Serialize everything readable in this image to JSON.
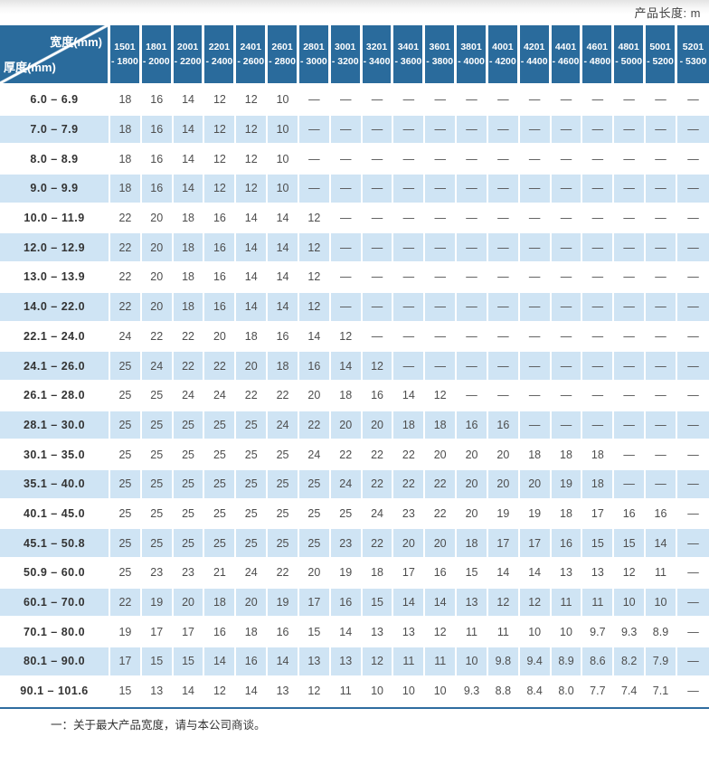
{
  "page": {
    "product_length_label": "产品长度: m",
    "footnote": "一：关于最大产品宽度，请与本公司商谈。"
  },
  "colors": {
    "header_blue": "#2a6b9c",
    "row_alt": "#cfe4f4",
    "rule_blue": "#2f6da0",
    "value_text": "#4d4d4d",
    "label_text": "#333333"
  },
  "table": {
    "corner": {
      "width_label": "宽度(mm)",
      "thickness_label": "厚度(mm)"
    },
    "width_ranges": [
      [
        "1501",
        "- 1800"
      ],
      [
        "1801",
        "- 2000"
      ],
      [
        "2001",
        "- 2200"
      ],
      [
        "2201",
        "- 2400"
      ],
      [
        "2401",
        "- 2600"
      ],
      [
        "2601",
        "- 2800"
      ],
      [
        "2801",
        "- 3000"
      ],
      [
        "3001",
        "- 3200"
      ],
      [
        "3201",
        "- 3400"
      ],
      [
        "3401",
        "- 3600"
      ],
      [
        "3601",
        "- 3800"
      ],
      [
        "3801",
        "- 4000"
      ],
      [
        "4001",
        "- 4200"
      ],
      [
        "4201",
        "- 4400"
      ],
      [
        "4401",
        "- 4600"
      ],
      [
        "4601",
        "- 4800"
      ],
      [
        "4801",
        "- 5000"
      ],
      [
        "5001",
        "- 5200"
      ],
      [
        "5201",
        "- 5300"
      ]
    ],
    "rows": [
      {
        "thickness": "6.0 –  6.9",
        "values": [
          "18",
          "16",
          "14",
          "12",
          "12",
          "10",
          "—",
          "—",
          "—",
          "—",
          "—",
          "—",
          "—",
          "—",
          "—",
          "—",
          "—",
          "—",
          "—"
        ]
      },
      {
        "thickness": "7.0 –  7.9",
        "values": [
          "18",
          "16",
          "14",
          "12",
          "12",
          "10",
          "—",
          "—",
          "—",
          "—",
          "—",
          "—",
          "—",
          "—",
          "—",
          "—",
          "—",
          "—",
          "—"
        ]
      },
      {
        "thickness": "8.0 –  8.9",
        "values": [
          "18",
          "16",
          "14",
          "12",
          "12",
          "10",
          "—",
          "—",
          "—",
          "—",
          "—",
          "—",
          "—",
          "—",
          "—",
          "—",
          "—",
          "—",
          "—"
        ]
      },
      {
        "thickness": "9.0 –  9.9",
        "values": [
          "18",
          "16",
          "14",
          "12",
          "12",
          "10",
          "—",
          "—",
          "—",
          "—",
          "—",
          "—",
          "—",
          "—",
          "—",
          "—",
          "—",
          "—",
          "—"
        ]
      },
      {
        "thickness": "10.0 – 11.9",
        "values": [
          "22",
          "20",
          "18",
          "16",
          "14",
          "14",
          "12",
          "—",
          "—",
          "—",
          "—",
          "—",
          "—",
          "—",
          "—",
          "—",
          "—",
          "—",
          "—"
        ]
      },
      {
        "thickness": "12.0 – 12.9",
        "values": [
          "22",
          "20",
          "18",
          "16",
          "14",
          "14",
          "12",
          "—",
          "—",
          "—",
          "—",
          "—",
          "—",
          "—",
          "—",
          "—",
          "—",
          "—",
          "—"
        ]
      },
      {
        "thickness": "13.0 – 13.9",
        "values": [
          "22",
          "20",
          "18",
          "16",
          "14",
          "14",
          "12",
          "—",
          "—",
          "—",
          "—",
          "—",
          "—",
          "—",
          "—",
          "—",
          "—",
          "—",
          "—"
        ]
      },
      {
        "thickness": "14.0 – 22.0",
        "values": [
          "22",
          "20",
          "18",
          "16",
          "14",
          "14",
          "12",
          "—",
          "—",
          "—",
          "—",
          "—",
          "—",
          "—",
          "—",
          "—",
          "—",
          "—",
          "—"
        ]
      },
      {
        "thickness": "22.1 – 24.0",
        "values": [
          "24",
          "22",
          "22",
          "20",
          "18",
          "16",
          "14",
          "12",
          "—",
          "—",
          "—",
          "—",
          "—",
          "—",
          "—",
          "—",
          "—",
          "—",
          "—"
        ]
      },
      {
        "thickness": "24.1 – 26.0",
        "values": [
          "25",
          "24",
          "22",
          "22",
          "20",
          "18",
          "16",
          "14",
          "12",
          "—",
          "—",
          "—",
          "—",
          "—",
          "—",
          "—",
          "—",
          "—",
          "—"
        ]
      },
      {
        "thickness": "26.1 – 28.0",
        "values": [
          "25",
          "25",
          "24",
          "24",
          "22",
          "22",
          "20",
          "18",
          "16",
          "14",
          "12",
          "—",
          "—",
          "—",
          "—",
          "—",
          "—",
          "—",
          "—"
        ]
      },
      {
        "thickness": "28.1 – 30.0",
        "values": [
          "25",
          "25",
          "25",
          "25",
          "25",
          "24",
          "22",
          "20",
          "20",
          "18",
          "18",
          "16",
          "16",
          "—",
          "—",
          "—",
          "—",
          "—",
          "—"
        ]
      },
      {
        "thickness": "30.1 – 35.0",
        "values": [
          "25",
          "25",
          "25",
          "25",
          "25",
          "25",
          "24",
          "22",
          "22",
          "22",
          "20",
          "20",
          "20",
          "18",
          "18",
          "18",
          "—",
          "—",
          "—"
        ]
      },
      {
        "thickness": "35.1 – 40.0",
        "values": [
          "25",
          "25",
          "25",
          "25",
          "25",
          "25",
          "25",
          "24",
          "22",
          "22",
          "22",
          "20",
          "20",
          "20",
          "19",
          "18",
          "—",
          "—",
          "—"
        ]
      },
      {
        "thickness": "40.1 – 45.0",
        "values": [
          "25",
          "25",
          "25",
          "25",
          "25",
          "25",
          "25",
          "25",
          "24",
          "23",
          "22",
          "20",
          "19",
          "19",
          "18",
          "17",
          "16",
          "16",
          "—"
        ]
      },
      {
        "thickness": "45.1 – 50.8",
        "values": [
          "25",
          "25",
          "25",
          "25",
          "25",
          "25",
          "25",
          "23",
          "22",
          "20",
          "20",
          "18",
          "17",
          "17",
          "16",
          "15",
          "15",
          "14",
          "—"
        ]
      },
      {
        "thickness": "50.9 – 60.0",
        "values": [
          "25",
          "23",
          "23",
          "21",
          "24",
          "22",
          "20",
          "19",
          "18",
          "17",
          "16",
          "15",
          "14",
          "14",
          "13",
          "13",
          "12",
          "11",
          "—"
        ]
      },
      {
        "thickness": "60.1 – 70.0",
        "values": [
          "22",
          "19",
          "20",
          "18",
          "20",
          "19",
          "17",
          "16",
          "15",
          "14",
          "14",
          "13",
          "12",
          "12",
          "11",
          "11",
          "10",
          "10",
          "—"
        ]
      },
      {
        "thickness": "70.1 – 80.0",
        "values": [
          "19",
          "17",
          "17",
          "16",
          "18",
          "16",
          "15",
          "14",
          "13",
          "13",
          "12",
          "11",
          "11",
          "10",
          "10",
          "9.7",
          "9.3",
          "8.9",
          "—"
        ]
      },
      {
        "thickness": "80.1 – 90.0",
        "values": [
          "17",
          "15",
          "15",
          "14",
          "16",
          "14",
          "13",
          "13",
          "12",
          "11",
          "11",
          "10",
          "9.8",
          "9.4",
          "8.9",
          "8.6",
          "8.2",
          "7.9",
          "—"
        ]
      },
      {
        "thickness": "90.1 – 101.6",
        "values": [
          "15",
          "13",
          "14",
          "12",
          "14",
          "13",
          "12",
          "11",
          "10",
          "10",
          "10",
          "9.3",
          "8.8",
          "8.4",
          "8.0",
          "7.7",
          "7.4",
          "7.1",
          "—"
        ]
      }
    ]
  }
}
